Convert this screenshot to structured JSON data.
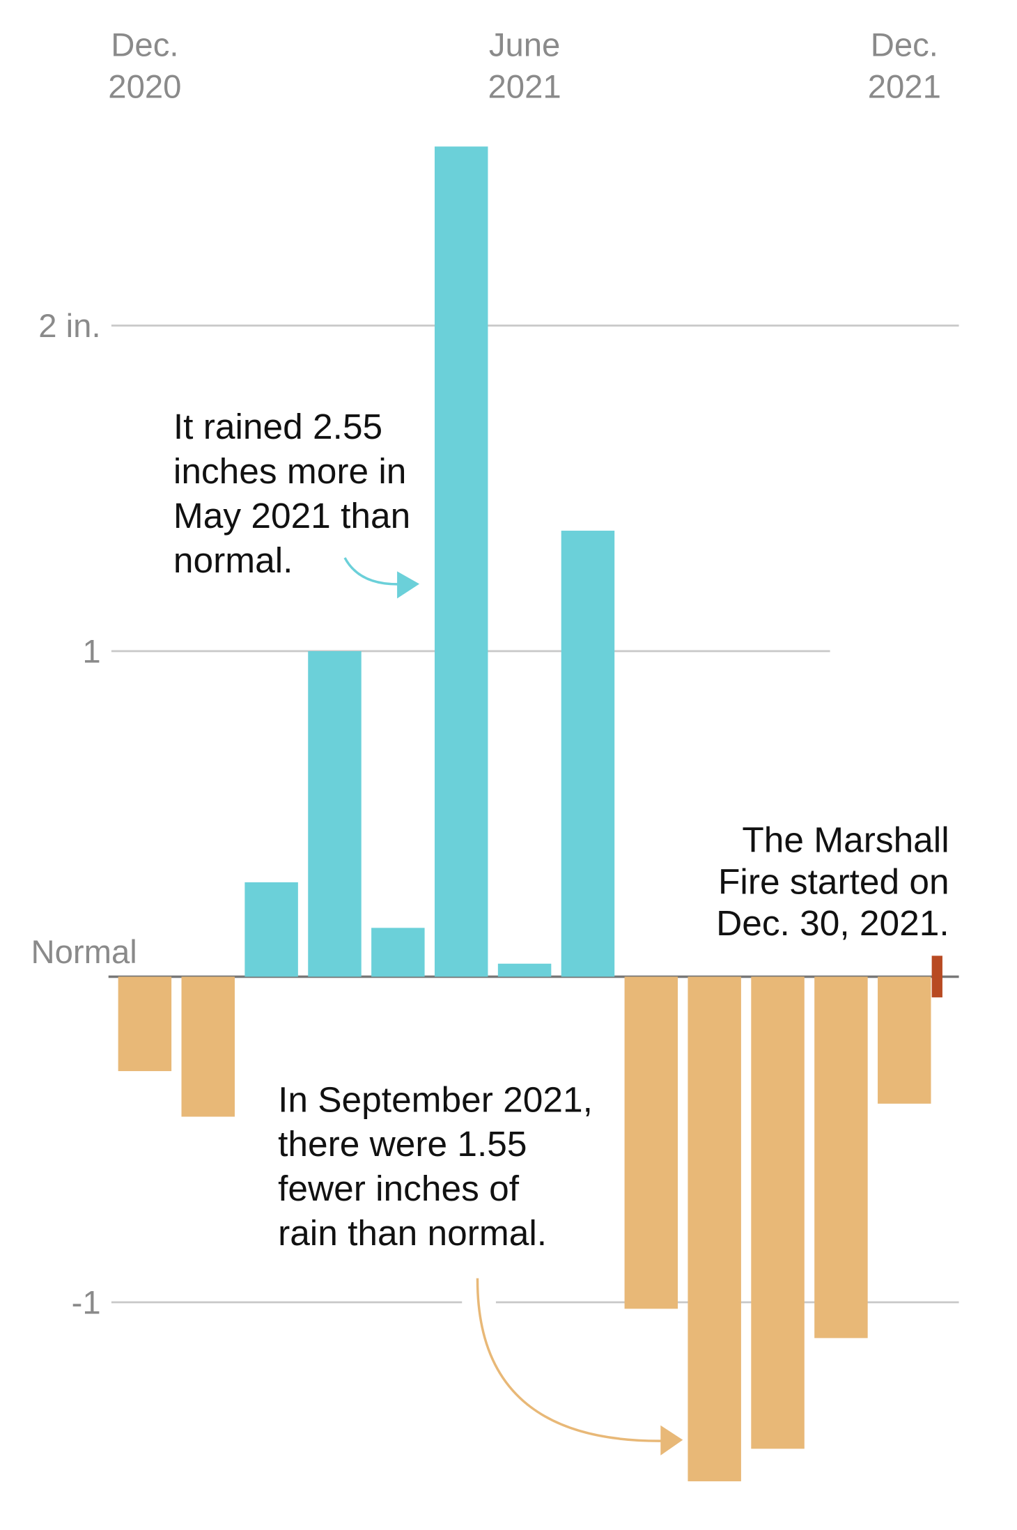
{
  "chart_data": {
    "type": "bar",
    "categories": [
      "Dec. 2020",
      null,
      null,
      null,
      null,
      null,
      "June 2021",
      null,
      null,
      null,
      null,
      null,
      "Dec. 2021"
    ],
    "values": [
      -0.29,
      -0.43,
      0.29,
      1.0,
      0.15,
      2.55,
      0.04,
      1.37,
      -1.02,
      -1.55,
      -1.45,
      -1.11,
      -0.39
    ],
    "positive_color": "#6bd0d9",
    "negative_color": "#e8b877",
    "ylim": [
      -1.64,
      3.0
    ],
    "yticks": [
      {
        "value": -1,
        "label": "-1"
      },
      {
        "value": 0,
        "label": "Normal"
      },
      {
        "value": 1,
        "label": "1"
      },
      {
        "value": 2,
        "label": "2 in."
      }
    ],
    "grid": true,
    "annotations": [
      {
        "lines": [
          "It rained 2.55",
          "inches more in",
          "May 2021 than",
          "normal."
        ]
      },
      {
        "lines": [
          "In September 2021,",
          "there were 1.55",
          "fewer inches of",
          "rain than normal."
        ]
      },
      {
        "lines": [
          "The Marshall",
          "Fire started on",
          "Dec. 30, 2021."
        ]
      }
    ]
  }
}
